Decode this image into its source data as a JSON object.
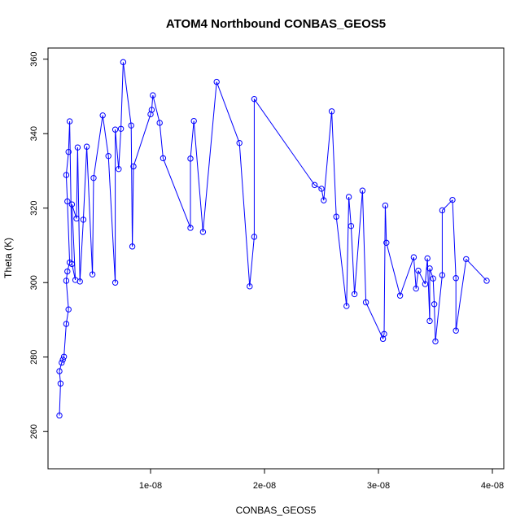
{
  "chart_data": {
    "type": "line",
    "title": "ATOM4 Northbound CONBAS_GEOS5",
    "xlabel": "CONBAS_GEOS5",
    "ylabel": "Theta (K)",
    "xlim": [
      1e-09,
      4.1e-08
    ],
    "ylim": [
      250,
      363
    ],
    "x_ticks": [
      1e-08,
      2e-08,
      3e-08,
      4e-08
    ],
    "x_tick_labels": [
      "1e-08",
      "2e-08",
      "3e-08",
      "4e-08"
    ],
    "y_ticks": [
      260,
      280,
      300,
      320,
      340,
      360
    ],
    "y_tick_labels": [
      "260",
      "280",
      "300",
      "320",
      "340",
      "360"
    ],
    "grid": false,
    "line_color": "#0000ff",
    "marker": "open-circle",
    "series": [
      {
        "values": [
          [
            2e-09,
            264.3
          ],
          [
            2.1e-09,
            272.9
          ],
          [
            2e-09,
            276.2
          ],
          [
            2.2e-09,
            278.5
          ],
          [
            2.3e-09,
            279.3
          ],
          [
            2.4e-09,
            280.1
          ],
          [
            2.6e-09,
            288.9
          ],
          [
            2.8e-09,
            292.8
          ],
          [
            2.6e-09,
            300.5
          ],
          [
            2.7e-09,
            303.0
          ],
          [
            2.9e-09,
            305.4
          ],
          [
            2.7e-09,
            321.8
          ],
          [
            2.6e-09,
            328.9
          ],
          [
            2.8e-09,
            335.1
          ],
          [
            2.9e-09,
            343.3
          ],
          [
            3.1e-09,
            305.0
          ],
          [
            3.4e-09,
            300.7
          ],
          [
            3.1e-09,
            321.0
          ],
          [
            3.5e-09,
            317.2
          ],
          [
            3.6e-09,
            336.3
          ],
          [
            3.8e-09,
            300.3
          ],
          [
            4.1e-09,
            316.9
          ],
          [
            4.4e-09,
            336.5
          ],
          [
            4.9e-09,
            302.2
          ],
          [
            5e-09,
            328.1
          ],
          [
            5.8e-09,
            344.9
          ],
          [
            6.3e-09,
            334.0
          ],
          [
            6.9e-09,
            300.0
          ],
          [
            6.9e-09,
            341.1
          ],
          [
            7.2e-09,
            330.5
          ],
          [
            7.4e-09,
            341.3
          ],
          [
            7.6e-09,
            359.2
          ],
          [
            8.3e-09,
            342.2
          ],
          [
            8.4e-09,
            309.7
          ],
          [
            8.5e-09,
            331.2
          ],
          [
            1e-08,
            345.2
          ],
          [
            1.01e-08,
            346.4
          ],
          [
            1.02e-08,
            350.3
          ],
          [
            1.08e-08,
            342.9
          ],
          [
            1.11e-08,
            333.4
          ],
          [
            1.35e-08,
            314.7
          ],
          [
            1.35e-08,
            333.3
          ],
          [
            1.38e-08,
            343.4
          ],
          [
            1.46e-08,
            313.6
          ],
          [
            1.58e-08,
            353.9
          ],
          [
            1.78e-08,
            337.5
          ],
          [
            1.87e-08,
            299.0
          ],
          [
            1.91e-08,
            312.3
          ],
          [
            1.91e-08,
            349.3
          ],
          [
            2.44e-08,
            326.2
          ],
          [
            2.5e-08,
            325.2
          ],
          [
            2.52e-08,
            322.1
          ],
          [
            2.59e-08,
            346.0
          ],
          [
            2.63e-08,
            317.7
          ],
          [
            2.72e-08,
            293.7
          ],
          [
            2.74e-08,
            323.0
          ],
          [
            2.76e-08,
            315.2
          ],
          [
            2.79e-08,
            296.9
          ],
          [
            2.86e-08,
            324.7
          ],
          [
            2.89e-08,
            294.7
          ],
          [
            3.04e-08,
            284.9
          ],
          [
            3.05e-08,
            286.2
          ],
          [
            3.06e-08,
            320.7
          ],
          [
            3.07e-08,
            310.7
          ],
          [
            3.19e-08,
            296.5
          ],
          [
            3.31e-08,
            306.8
          ],
          [
            3.33e-08,
            298.4
          ],
          [
            3.35e-08,
            303.2
          ],
          [
            3.41e-08,
            299.6
          ],
          [
            3.43e-08,
            306.5
          ],
          [
            3.45e-08,
            289.7
          ],
          [
            3.45e-08,
            303.8
          ],
          [
            3.48e-08,
            301.1
          ],
          [
            3.49e-08,
            294.2
          ],
          [
            3.5e-08,
            284.2
          ],
          [
            3.56e-08,
            302.0
          ],
          [
            3.56e-08,
            319.4
          ],
          [
            3.65e-08,
            322.2
          ],
          [
            3.68e-08,
            301.2
          ],
          [
            3.68e-08,
            287.1
          ],
          [
            3.77e-08,
            306.3
          ],
          [
            3.95e-08,
            300.5
          ]
        ]
      }
    ]
  }
}
